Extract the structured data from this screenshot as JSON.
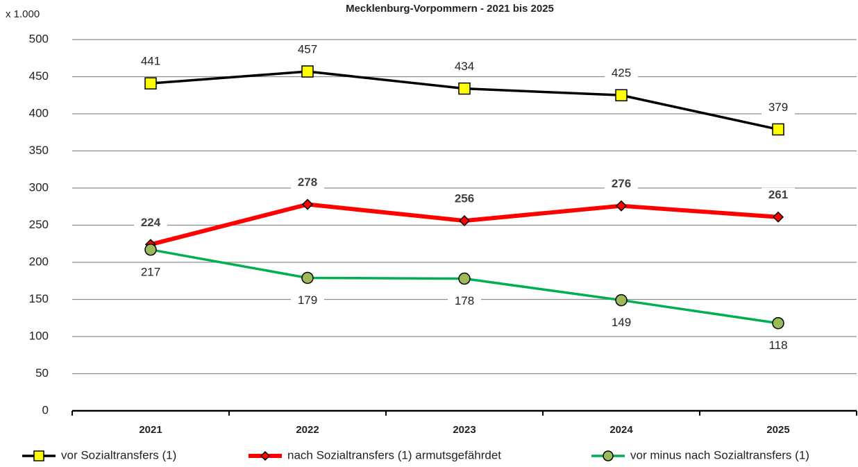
{
  "chart_data": {
    "type": "line",
    "title": "Mecklenburg-Vorpommern - 2021 bis 2025",
    "y_unit_label": "x 1.000",
    "categories": [
      "2021",
      "2022",
      "2023",
      "2024",
      "2025"
    ],
    "series": [
      {
        "name": "vor Sozialtransfers (1)",
        "color": "#000000",
        "marker": "square",
        "marker_color": "#ffff00",
        "label_position": "above",
        "values": [
          441,
          457,
          434,
          425,
          379
        ]
      },
      {
        "name": "nach Sozialtransfers (1) armutsgefährdet",
        "color": "#ff0000",
        "marker": "diamond",
        "marker_color": "#ff0000",
        "label_position": "above",
        "values": [
          224,
          278,
          256,
          276,
          261
        ]
      },
      {
        "name": "vor minus nach Sozialtransfers (1)",
        "color": "#00b050",
        "marker": "circle",
        "marker_color": "#9bbb59",
        "label_position": "below",
        "values": [
          217,
          179,
          178,
          149,
          118
        ]
      }
    ],
    "ylim": [
      0,
      500
    ],
    "yticks": [
      0,
      50,
      100,
      150,
      200,
      250,
      300,
      350,
      400,
      450,
      500
    ],
    "grid": true
  }
}
